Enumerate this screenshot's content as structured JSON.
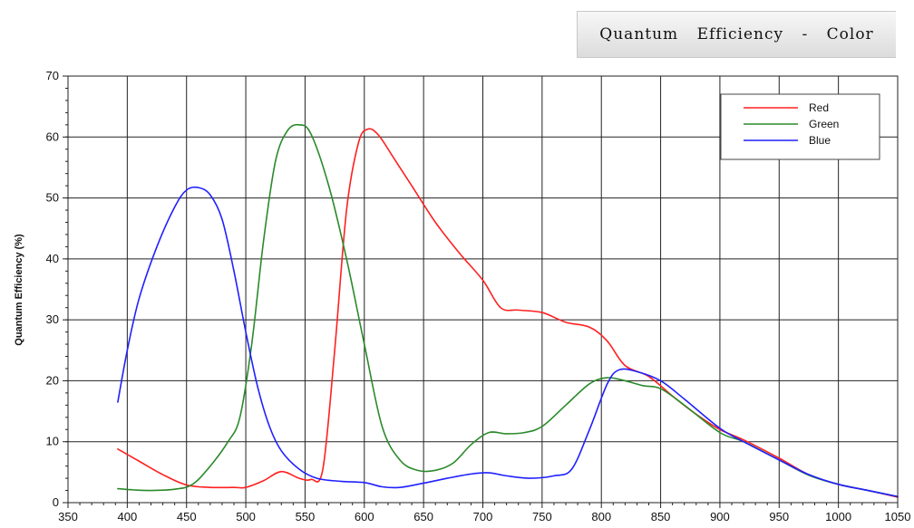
{
  "title": "Quantum Efficiency - Color",
  "chart_data": {
    "type": "line",
    "title": "Quantum Efficiency - Color",
    "xlabel": "",
    "ylabel": "Quantum Efficiency (%)",
    "xlim": [
      350,
      1050
    ],
    "ylim": [
      0,
      70
    ],
    "x_ticks": [
      350,
      400,
      450,
      500,
      550,
      600,
      650,
      700,
      750,
      800,
      850,
      900,
      950,
      1000,
      1050
    ],
    "y_ticks": [
      0,
      10,
      20,
      30,
      40,
      50,
      60,
      70
    ],
    "grid": true,
    "legend": "top-right",
    "series": [
      {
        "name": "Red",
        "color": "#ff2020",
        "x": [
          392,
          410,
          430,
          450,
          470,
          490,
          500,
          515,
          530,
          545,
          555,
          565,
          575,
          585,
          595,
          603,
          612,
          625,
          640,
          660,
          680,
          700,
          715,
          730,
          750,
          770,
          790,
          805,
          820,
          840,
          860,
          880,
          900,
          920,
          950,
          975,
          1000,
          1025,
          1050
        ],
        "y": [
          8.8,
          6.8,
          4.6,
          2.9,
          2.5,
          2.5,
          2.5,
          3.6,
          5.1,
          4.0,
          3.8,
          5.5,
          25.0,
          48.0,
          59.0,
          61.3,
          60.3,
          56.5,
          52.0,
          46.0,
          41.0,
          36.5,
          32.0,
          31.6,
          31.2,
          29.6,
          28.8,
          26.5,
          22.5,
          20.7,
          17.5,
          14.5,
          12.0,
          10.3,
          7.3,
          4.6,
          3.0,
          2.0,
          0.9
        ]
      },
      {
        "name": "Green",
        "color": "#2a8a2a",
        "x": [
          392,
          405,
          420,
          440,
          455,
          470,
          485,
          495,
          505,
          515,
          525,
          535,
          545,
          555,
          570,
          585,
          600,
          615,
          630,
          645,
          660,
          675,
          690,
          705,
          720,
          735,
          750,
          770,
          790,
          805,
          820,
          835,
          850,
          870,
          900,
          920,
          950,
          975,
          1000,
          1025,
          1050
        ],
        "y": [
          2.3,
          2.1,
          2.0,
          2.2,
          3.0,
          6.0,
          10.0,
          14.0,
          26.0,
          43.0,
          56.0,
          61.0,
          62.0,
          60.5,
          52.0,
          40.0,
          26.0,
          12.5,
          7.0,
          5.3,
          5.3,
          6.5,
          9.5,
          11.5,
          11.3,
          11.5,
          12.5,
          16.0,
          19.5,
          20.5,
          20.0,
          19.2,
          18.7,
          16.0,
          11.5,
          10.0,
          7.0,
          4.5,
          3.0,
          2.0,
          1.0
        ]
      },
      {
        "name": "Blue",
        "color": "#2020ff",
        "x": [
          392,
          400,
          410,
          425,
          440,
          450,
          460,
          470,
          480,
          490,
          500,
          510,
          520,
          530,
          545,
          560,
          580,
          600,
          615,
          630,
          650,
          670,
          690,
          705,
          720,
          740,
          760,
          775,
          790,
          805,
          815,
          830,
          850,
          870,
          900,
          920,
          950,
          975,
          1000,
          1025,
          1050
        ],
        "y": [
          16.5,
          25.0,
          33.5,
          42.0,
          48.5,
          51.3,
          51.7,
          50.5,
          46.5,
          38.0,
          28.0,
          19.0,
          12.5,
          8.5,
          5.5,
          4.0,
          3.5,
          3.3,
          2.6,
          2.5,
          3.2,
          4.0,
          4.7,
          4.9,
          4.4,
          4.0,
          4.4,
          5.5,
          12.0,
          19.5,
          21.8,
          21.5,
          20.0,
          17.0,
          12.2,
          10.0,
          7.0,
          4.6,
          3.0,
          2.0,
          1.0
        ]
      }
    ]
  }
}
